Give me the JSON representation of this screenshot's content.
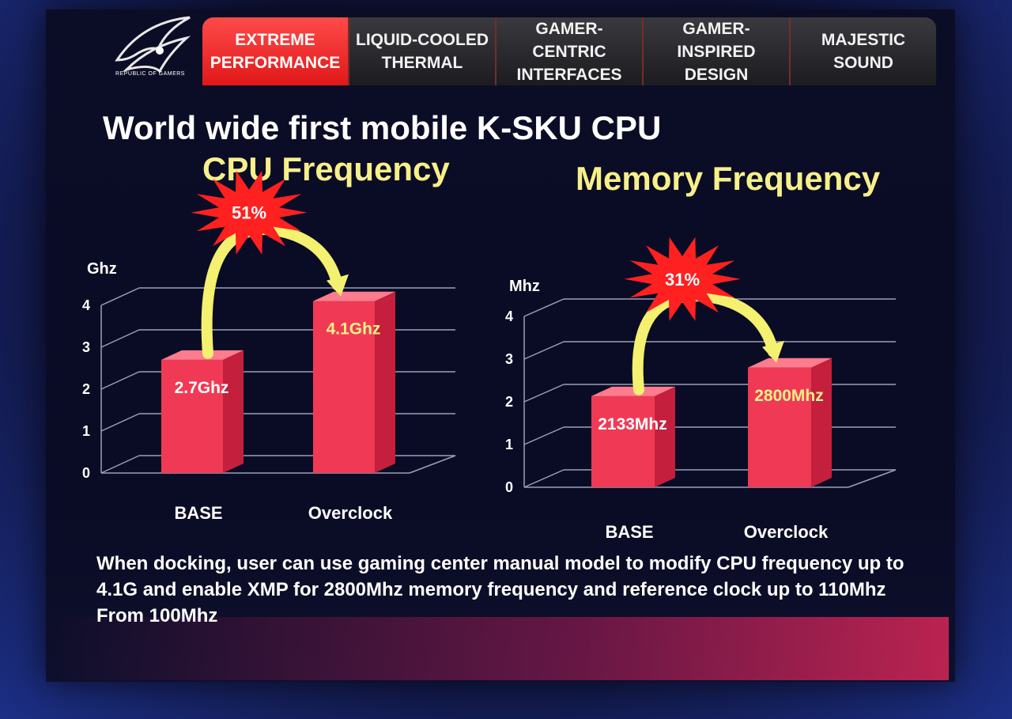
{
  "brand": {
    "logo_text": "REPUBLIC OF GAMERS"
  },
  "tabs": [
    {
      "label_l1": "EXTREME",
      "label_l2": "PERFORMANCE",
      "active": true
    },
    {
      "label_l1": "LIQUID-COOLED",
      "label_l2": "THERMAL",
      "active": false
    },
    {
      "label_l1": "GAMER-CENTRIC",
      "label_l2": "INTERFACES",
      "active": false
    },
    {
      "label_l1": "GAMER-INSPIRED",
      "label_l2": "DESIGN",
      "active": false
    },
    {
      "label_l1": "MAJESTIC",
      "label_l2": "SOUND",
      "active": false
    }
  ],
  "headline": "World wide first mobile K-SKU CPU",
  "footnote": "When docking, user can use gaming center manual model to modify CPU frequency up to 4.1G and enable XMP for 2800Mhz memory frequency and reference clock up to 110Mhz From 100Mhz",
  "colors": {
    "bar": "#f03a55",
    "bar_side": "#c41f3c",
    "bar_top": "#ff7b8e",
    "title": "#f7f08a",
    "burst": "#ff2020",
    "arrow": "#f4f070",
    "active_tab": "#e82222"
  },
  "chart_data": [
    {
      "type": "bar",
      "title": "CPU Frequency",
      "ylabel": "Ghz",
      "ylim": [
        0,
        4
      ],
      "yticks": [
        "0",
        "1",
        "2",
        "3",
        "4"
      ],
      "categories": [
        "BASE",
        "Overclock"
      ],
      "values": [
        2.7,
        4.1
      ],
      "data_labels": [
        "2.7Ghz",
        "4.1Ghz"
      ],
      "annotation": "51%"
    },
    {
      "type": "bar",
      "title": "Memory Frequency",
      "ylabel": "Mhz",
      "ylim": [
        0,
        4
      ],
      "yticks": [
        "0",
        "1",
        "2",
        "3",
        "4"
      ],
      "categories": [
        "BASE",
        "Overclock"
      ],
      "values": [
        2.133,
        2.8
      ],
      "data_labels": [
        "2133Mhz",
        "2800Mhz"
      ],
      "annotation": "31%"
    }
  ]
}
